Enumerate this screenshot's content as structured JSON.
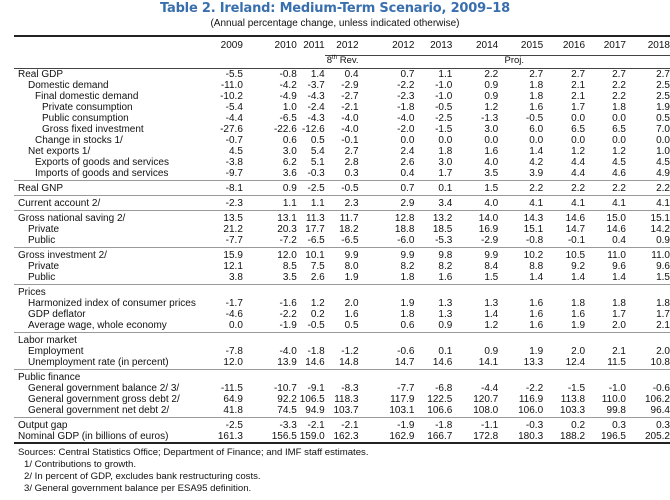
{
  "title": "Table 2. Ireland: Medium-Term Scenario, 2009–18",
  "subtitle": "(Annual percentage change, unless indicated otherwise)",
  "header": {
    "years": [
      "2009",
      "2010",
      "2011",
      "2012",
      "2012",
      "2013",
      "2014",
      "2015",
      "2016",
      "2017",
      "2018"
    ],
    "rev_label_sup": "th",
    "rev_label_num": "8",
    "rev_label_text": " Rev.",
    "proj_label": "Proj."
  },
  "groups": [
    {
      "rows": [
        {
          "label": "Real GDP",
          "indent": 0,
          "values": [
            "-5.5",
            "-0.8",
            "1.4",
            "0.4",
            "0.7",
            "1.1",
            "2.2",
            "2.7",
            "2.7",
            "2.7",
            "2.7"
          ]
        },
        {
          "label": "Domestic demand",
          "indent": 1,
          "values": [
            "-11.0",
            "-4.2",
            "-3.7",
            "-2.9",
            "-2.2",
            "-1.0",
            "0.9",
            "1.8",
            "2.1",
            "2.2",
            "2.5"
          ]
        },
        {
          "label": "Final domestic demand",
          "indent": 2,
          "values": [
            "-10.2",
            "-4.9",
            "-4.3",
            "-2.7",
            "-2.3",
            "-1.0",
            "0.9",
            "1.8",
            "2.1",
            "2.2",
            "2.5"
          ]
        },
        {
          "label": "Private consumption",
          "indent": 3,
          "values": [
            "-5.4",
            "1.0",
            "-2.4",
            "-2.1",
            "-1.8",
            "-0.5",
            "1.2",
            "1.6",
            "1.7",
            "1.8",
            "1.9"
          ]
        },
        {
          "label": "Public consumption",
          "indent": 3,
          "values": [
            "-4.4",
            "-6.5",
            "-4.3",
            "-4.0",
            "-4.0",
            "-2.5",
            "-1.3",
            "-0.5",
            "0.0",
            "0.0",
            "0.5"
          ]
        },
        {
          "label": "Gross fixed investment",
          "indent": 3,
          "values": [
            "-27.6",
            "-22.6",
            "-12.6",
            "-4.0",
            "-2.0",
            "-1.5",
            "3.0",
            "6.0",
            "6.5",
            "6.5",
            "7.0"
          ]
        },
        {
          "label": "Change in stocks 1/",
          "indent": 2,
          "values": [
            "-0.7",
            "0.6",
            "0.5",
            "-0.1",
            "0.0",
            "0.0",
            "0.0",
            "0.0",
            "0.0",
            "0.0",
            "0.0"
          ]
        },
        {
          "label": "Net exports 1/",
          "indent": 1,
          "values": [
            "4.5",
            "3.0",
            "5.4",
            "2.7",
            "2.4",
            "1.8",
            "1.6",
            "1.4",
            "1.2",
            "1.2",
            "1.0"
          ]
        },
        {
          "label": "Exports of goods and services",
          "indent": 2,
          "values": [
            "-3.8",
            "6.2",
            "5.1",
            "2.8",
            "2.6",
            "3.0",
            "4.0",
            "4.2",
            "4.4",
            "4.5",
            "4.5"
          ]
        },
        {
          "label": "Imports of goods and services",
          "indent": 2,
          "values": [
            "-9.7",
            "3.6",
            "-0.3",
            "0.3",
            "0.4",
            "1.7",
            "3.5",
            "3.9",
            "4.4",
            "4.6",
            "4.9"
          ]
        }
      ]
    },
    {
      "rows": [
        {
          "label": "Real GNP",
          "indent": 0,
          "values": [
            "-8.1",
            "0.9",
            "-2.5",
            "-0.5",
            "0.7",
            "0.1",
            "1.5",
            "2.2",
            "2.2",
            "2.2",
            "2.2"
          ]
        }
      ]
    },
    {
      "rows": [
        {
          "label": "Current account 2/",
          "indent": 0,
          "values": [
            "-2.3",
            "1.1",
            "1.1",
            "2.3",
            "2.9",
            "3.4",
            "4.0",
            "4.1",
            "4.1",
            "4.1",
            "4.1"
          ]
        }
      ]
    },
    {
      "rows": [
        {
          "label": "Gross national saving 2/",
          "indent": 0,
          "values": [
            "13.5",
            "13.1",
            "11.3",
            "11.7",
            "12.8",
            "13.2",
            "14.0",
            "14.3",
            "14.6",
            "15.0",
            "15.1"
          ]
        },
        {
          "label": "Private",
          "indent": 1,
          "values": [
            "21.2",
            "20.3",
            "17.7",
            "18.2",
            "18.8",
            "18.5",
            "16.9",
            "15.1",
            "14.7",
            "14.6",
            "14.2"
          ]
        },
        {
          "label": "Public",
          "indent": 1,
          "values": [
            "-7.7",
            "-7.2",
            "-6.5",
            "-6.5",
            "-6.0",
            "-5.3",
            "-2.9",
            "-0.8",
            "-0.1",
            "0.4",
            "0.9"
          ]
        }
      ]
    },
    {
      "rows": [
        {
          "label": "Gross investment 2/",
          "indent": 0,
          "values": [
            "15.9",
            "12.0",
            "10.1",
            "9.9",
            "9.9",
            "9.8",
            "9.9",
            "10.2",
            "10.5",
            "11.0",
            "11.0"
          ]
        },
        {
          "label": "Private",
          "indent": 1,
          "values": [
            "12.1",
            "8.5",
            "7.5",
            "8.0",
            "8.2",
            "8.2",
            "8.4",
            "8.8",
            "9.2",
            "9.6",
            "9.6"
          ]
        },
        {
          "label": "Public",
          "indent": 1,
          "values": [
            "3.8",
            "3.5",
            "2.6",
            "1.9",
            "1.8",
            "1.6",
            "1.5",
            "1.4",
            "1.4",
            "1.4",
            "1.5"
          ]
        }
      ]
    },
    {
      "rows": [
        {
          "label": "Prices",
          "indent": 0,
          "values": [
            "",
            "",
            "",
            "",
            "",
            "",
            "",
            "",
            "",
            "",
            ""
          ]
        },
        {
          "label": "Harmonized index of consumer prices",
          "indent": 1,
          "values": [
            "-1.7",
            "-1.6",
            "1.2",
            "2.0",
            "1.9",
            "1.3",
            "1.3",
            "1.6",
            "1.8",
            "1.8",
            "1.8"
          ]
        },
        {
          "label": "GDP deflator",
          "indent": 1,
          "values": [
            "-4.6",
            "-2.2",
            "0.2",
            "1.6",
            "1.8",
            "1.3",
            "1.4",
            "1.6",
            "1.6",
            "1.7",
            "1.7"
          ]
        },
        {
          "label": "Average wage, whole economy",
          "indent": 1,
          "values": [
            "0.0",
            "-1.9",
            "-0.5",
            "0.5",
            "0.6",
            "0.9",
            "1.2",
            "1.6",
            "1.9",
            "2.0",
            "2.1"
          ]
        }
      ]
    },
    {
      "rows": [
        {
          "label": "Labor market",
          "indent": 0,
          "values": [
            "",
            "",
            "",
            "",
            "",
            "",
            "",
            "",
            "",
            "",
            ""
          ]
        },
        {
          "label": "Employment",
          "indent": 1,
          "values": [
            "-7.8",
            "-4.0",
            "-1.8",
            "-1.2",
            "-0.6",
            "0.1",
            "0.9",
            "1.9",
            "2.0",
            "2.1",
            "2.0"
          ]
        },
        {
          "label": "Unemployment rate (in percent)",
          "indent": 1,
          "values": [
            "12.0",
            "13.9",
            "14.6",
            "14.8",
            "14.7",
            "14.6",
            "14.1",
            "13.3",
            "12.4",
            "11.5",
            "10.8"
          ]
        }
      ]
    },
    {
      "rows": [
        {
          "label": "Public finance",
          "indent": 0,
          "values": [
            "",
            "",
            "",
            "",
            "",
            "",
            "",
            "",
            "",
            "",
            ""
          ]
        },
        {
          "label": "General government balance 2/ 3/",
          "indent": 1,
          "values": [
            "-11.5",
            "-10.7",
            "-9.1",
            "-8.3",
            "-7.7",
            "-6.8",
            "-4.4",
            "-2.2",
            "-1.5",
            "-1.0",
            "-0.6"
          ]
        },
        {
          "label": "General government gross debt 2/",
          "indent": 1,
          "values": [
            "64.9",
            "92.2",
            "106.5",
            "118.3",
            "117.9",
            "122.5",
            "120.7",
            "116.9",
            "113.8",
            "110.0",
            "106.2"
          ]
        },
        {
          "label": "General government net debt 2/",
          "indent": 1,
          "values": [
            "41.8",
            "74.5",
            "94.9",
            "103.7",
            "103.1",
            "106.6",
            "108.0",
            "106.0",
            "103.3",
            "99.8",
            "96.4"
          ]
        }
      ]
    },
    {
      "rows": [
        {
          "label": "Output gap",
          "indent": 0,
          "values": [
            "-2.5",
            "-3.3",
            "-2.1",
            "-2.1",
            "-1.9",
            "-1.8",
            "-1.1",
            "-0.3",
            "0.2",
            "0.3",
            "0.3"
          ]
        },
        {
          "label": "Nominal GDP (in billions of euros)",
          "indent": 0,
          "values": [
            "161.3",
            "156.5",
            "159.0",
            "162.3",
            "162.9",
            "166.7",
            "172.8",
            "180.3",
            "188.2",
            "196.5",
            "205.2"
          ]
        }
      ]
    }
  ],
  "notes": {
    "source": "Sources: Central Statistics Office; Department of Finance; and IMF staff estimates.",
    "footnotes": [
      "1/ Contributions to growth.",
      "2/ In percent of GDP, excludes bank restructuring costs.",
      "3/ General government balance per ESA95  definition."
    ]
  }
}
